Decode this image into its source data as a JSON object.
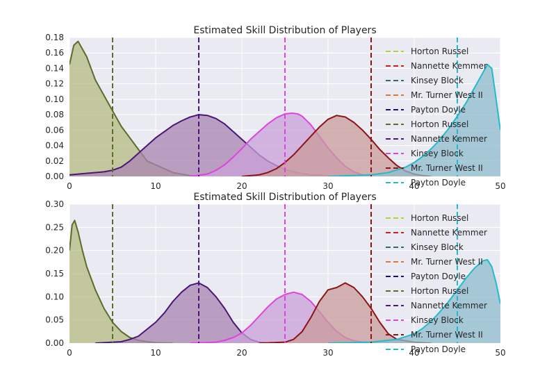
{
  "chart_data": [
    {
      "type": "area",
      "title": "Estimated Skill Distribution of Players",
      "xlabel": "",
      "ylabel": "",
      "xlim": [
        0,
        50
      ],
      "ylim": [
        0,
        0.18
      ],
      "xticks": [
        0,
        10,
        20,
        30,
        40,
        50
      ],
      "yticks": [
        0.0,
        0.02,
        0.04,
        0.06,
        0.08,
        0.1,
        0.12,
        0.14,
        0.16,
        0.18
      ],
      "ytick_labels": [
        "0.00",
        "0.02",
        "0.04",
        "0.06",
        "0.08",
        "0.10",
        "0.12",
        "0.14",
        "0.16",
        "0.18"
      ],
      "grid": true,
      "legend_position": "right",
      "legend": [
        {
          "label": "Horton Russel",
          "color": "#b8d22e"
        },
        {
          "label": "Nannette Kemmer",
          "color": "#c81f2a"
        },
        {
          "label": "Kinsey Block",
          "color": "#2f6e5e"
        },
        {
          "label": "Mr. Turner West II",
          "color": "#e0773a"
        },
        {
          "label": "Payton Doyle",
          "color": "#12127a"
        },
        {
          "label": "Horton Russel",
          "color": "#5a6b2a"
        },
        {
          "label": "Nannette Kemmer",
          "color": "#4a1478"
        },
        {
          "label": "Kinsey Block",
          "color": "#dd44dd"
        },
        {
          "label": "Mr. Turner West II",
          "color": "#8b1414"
        },
        {
          "label": "Payton Doyle",
          "color": "#22bbcc"
        }
      ],
      "vlines": [
        {
          "x": 5,
          "color": "#5a6b2a"
        },
        {
          "x": 15,
          "color": "#4a1478"
        },
        {
          "x": 25,
          "color": "#dd44dd"
        },
        {
          "x": 35,
          "color": "#8b1414"
        },
        {
          "x": 45,
          "color": "#22bbcc"
        }
      ],
      "series": [
        {
          "color": "#5a6b2a",
          "fill": "#b5bb80",
          "x": [
            0,
            0.5,
            1,
            2,
            3,
            4,
            5,
            6,
            7,
            8,
            9,
            10,
            11,
            12,
            13,
            14,
            15
          ],
          "y": [
            0.145,
            0.17,
            0.175,
            0.155,
            0.125,
            0.105,
            0.085,
            0.065,
            0.05,
            0.035,
            0.02,
            0.015,
            0.01,
            0.005,
            0.003,
            0.001,
            0
          ]
        },
        {
          "color": "#4a1478",
          "fill": "#a984b0",
          "x": [
            0,
            4,
            5,
            6,
            7,
            8,
            9,
            10,
            11,
            12,
            13,
            14,
            15,
            16,
            17,
            18,
            19,
            20,
            21,
            22,
            23,
            24,
            25,
            26,
            27,
            28,
            30
          ],
          "y": [
            0.002,
            0.006,
            0.008,
            0.012,
            0.02,
            0.03,
            0.04,
            0.05,
            0.058,
            0.066,
            0.072,
            0.077,
            0.08,
            0.079,
            0.075,
            0.068,
            0.058,
            0.048,
            0.038,
            0.028,
            0.02,
            0.014,
            0.009,
            0.006,
            0.004,
            0.002,
            0.001
          ]
        },
        {
          "color": "#dd44dd",
          "fill": "#c9a0d8",
          "x": [
            14,
            16,
            17,
            18,
            19,
            20,
            21,
            22,
            23,
            24,
            25,
            25.8,
            26.5,
            27,
            28,
            29,
            30,
            31,
            32,
            33,
            34,
            35
          ],
          "y": [
            0,
            0.003,
            0.008,
            0.015,
            0.025,
            0.036,
            0.048,
            0.058,
            0.068,
            0.076,
            0.081,
            0.082,
            0.081,
            0.078,
            0.067,
            0.052,
            0.037,
            0.024,
            0.013,
            0.006,
            0.002,
            0
          ]
        },
        {
          "color": "#8b1414",
          "fill": "#c99b9b",
          "x": [
            20,
            22,
            23,
            24,
            25,
            26,
            27,
            28,
            29,
            30,
            31,
            32,
            33,
            34,
            35,
            36,
            37,
            38,
            39,
            40,
            41,
            42
          ],
          "y": [
            0,
            0.002,
            0.005,
            0.01,
            0.018,
            0.028,
            0.04,
            0.052,
            0.064,
            0.074,
            0.079,
            0.077,
            0.07,
            0.06,
            0.048,
            0.035,
            0.024,
            0.014,
            0.007,
            0.003,
            0.001,
            0
          ]
        },
        {
          "color": "#22bbcc",
          "fill": "#8fbccc",
          "x": [
            30,
            35,
            37,
            39,
            40,
            41,
            42,
            43,
            44,
            45,
            46,
            47,
            48,
            48.5,
            49,
            49.5,
            50
          ],
          "y": [
            0,
            0.002,
            0.005,
            0.012,
            0.018,
            0.026,
            0.036,
            0.048,
            0.062,
            0.078,
            0.095,
            0.115,
            0.135,
            0.145,
            0.14,
            0.1,
            0.06
          ]
        }
      ]
    },
    {
      "type": "area",
      "title": "Estimated Skill Distribution of Players",
      "xlabel": "",
      "ylabel": "",
      "xlim": [
        0,
        50
      ],
      "ylim": [
        0,
        0.3
      ],
      "xticks": [
        0,
        10,
        20,
        30,
        40,
        50
      ],
      "yticks": [
        0.0,
        0.05,
        0.1,
        0.15,
        0.2,
        0.25,
        0.3
      ],
      "ytick_labels": [
        "0.00",
        "0.05",
        "0.10",
        "0.15",
        "0.20",
        "0.25",
        "0.30"
      ],
      "grid": true,
      "legend_position": "right",
      "legend": [
        {
          "label": "Horton Russel",
          "color": "#b8d22e"
        },
        {
          "label": "Nannette Kemmer",
          "color": "#c81f2a"
        },
        {
          "label": "Kinsey Block",
          "color": "#2f6e5e"
        },
        {
          "label": "Mr. Turner West II",
          "color": "#e0773a"
        },
        {
          "label": "Payton Doyle",
          "color": "#12127a"
        },
        {
          "label": "Horton Russel",
          "color": "#5a6b2a"
        },
        {
          "label": "Nannette Kemmer",
          "color": "#4a1478"
        },
        {
          "label": "Kinsey Block",
          "color": "#dd44dd"
        },
        {
          "label": "Mr. Turner West II",
          "color": "#8b1414"
        },
        {
          "label": "Payton Doyle",
          "color": "#22bbcc"
        }
      ],
      "vlines": [
        {
          "x": 5,
          "color": "#5a6b2a"
        },
        {
          "x": 15,
          "color": "#4a1478"
        },
        {
          "x": 25,
          "color": "#dd44dd"
        },
        {
          "x": 35,
          "color": "#8b1414"
        },
        {
          "x": 45,
          "color": "#22bbcc"
        }
      ],
      "series": [
        {
          "color": "#5a6b2a",
          "fill": "#b5bb80",
          "x": [
            0,
            0.3,
            0.6,
            1,
            1.5,
            2,
            3,
            4,
            5,
            6,
            7,
            8,
            9,
            10,
            11,
            12
          ],
          "y": [
            0.2,
            0.255,
            0.265,
            0.24,
            0.2,
            0.165,
            0.115,
            0.075,
            0.045,
            0.025,
            0.012,
            0.006,
            0.003,
            0.001,
            0.0005,
            0
          ]
        },
        {
          "color": "#4a1478",
          "fill": "#a984b0",
          "x": [
            3,
            6,
            7,
            8,
            9,
            10,
            11,
            12,
            13,
            14,
            15,
            16,
            17,
            18,
            19,
            20,
            21,
            22,
            23
          ],
          "y": [
            0,
            0.003,
            0.008,
            0.015,
            0.03,
            0.045,
            0.065,
            0.09,
            0.11,
            0.125,
            0.13,
            0.12,
            0.1,
            0.075,
            0.045,
            0.022,
            0.008,
            0.002,
            0
          ]
        },
        {
          "color": "#dd44dd",
          "fill": "#c9a0d8",
          "x": [
            14,
            17,
            18,
            19,
            20,
            21,
            22,
            23,
            24,
            25,
            26,
            27,
            28,
            29,
            30,
            31,
            32,
            33,
            34,
            35
          ],
          "y": [
            0,
            0.002,
            0.006,
            0.012,
            0.022,
            0.038,
            0.058,
            0.078,
            0.095,
            0.105,
            0.11,
            0.105,
            0.09,
            0.068,
            0.045,
            0.025,
            0.012,
            0.005,
            0.002,
            0
          ]
        },
        {
          "color": "#8b1414",
          "fill": "#c99b9b",
          "x": [
            22,
            25,
            26,
            27,
            28,
            29,
            30,
            31,
            32,
            33,
            34,
            35,
            36,
            37,
            38,
            40,
            42
          ],
          "y": [
            0,
            0.002,
            0.008,
            0.025,
            0.055,
            0.09,
            0.115,
            0.12,
            0.13,
            0.12,
            0.1,
            0.075,
            0.045,
            0.02,
            0.008,
            0.002,
            0
          ]
        },
        {
          "color": "#22bbcc",
          "fill": "#8fbccc",
          "x": [
            30,
            35,
            38,
            40,
            41,
            42,
            43,
            44,
            45,
            46,
            47,
            48,
            48.5,
            49,
            49.5,
            50
          ],
          "y": [
            0,
            0.002,
            0.008,
            0.02,
            0.032,
            0.048,
            0.068,
            0.09,
            0.115,
            0.14,
            0.162,
            0.178,
            0.18,
            0.165,
            0.13,
            0.085
          ]
        }
      ]
    }
  ]
}
